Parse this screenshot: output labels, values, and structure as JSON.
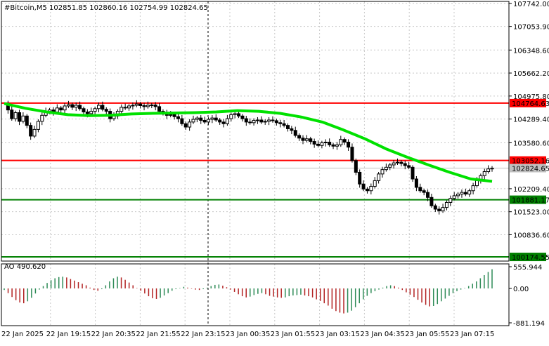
{
  "chart_data": [
    {
      "type": "candlestick",
      "title": "#Bitcoin,M5  102851.85 102860.16 102754.99 102824.65",
      "symbol": "#Bitcoin",
      "timeframe": "M5",
      "ohlc_header": {
        "open": 102851.85,
        "high": 102860.16,
        "low": 102754.99,
        "close": 102824.65
      },
      "y_tick_labels": [
        "107742.00",
        "107053.90",
        "106348.60",
        "105662.20",
        "104975.80",
        "104289.40",
        "103580.60",
        "102209.40",
        "101523.00",
        "100836.60"
      ],
      "y_ticks": [
        107742.0,
        107053.9,
        106348.6,
        105662.2,
        104975.8,
        104289.4,
        103580.6,
        102209.4,
        101523.0,
        100836.6
      ],
      "ylim": [
        100050,
        107800
      ],
      "x_tick_labels": [
        "22 Jan 2025",
        "22 Jan 19:15",
        "22 Jan 20:35",
        "22 Jan 21:55",
        "22 Jan 23:15",
        "23 Jan 00:35",
        "23 Jan 01:55",
        "23 Jan 03:15",
        "23 Jan 04:35",
        "23 Jan 05:55",
        "23 Jan 07:15"
      ],
      "grid": true,
      "price_series": [
        104750,
        104560,
        104300,
        104480,
        104220,
        104380,
        104100,
        103780,
        103980,
        104220,
        104400,
        104520,
        104560,
        104500,
        104620,
        104560,
        104680,
        104720,
        104640,
        104700,
        104600,
        104500,
        104450,
        104520,
        104600,
        104700,
        104580,
        104520,
        104300,
        104380,
        104520,
        104640,
        104620,
        104680,
        104700,
        104740,
        104690,
        104660,
        104700,
        104710,
        104660,
        104520,
        104480,
        104400,
        104420,
        104360,
        104300,
        104150,
        104050,
        104200,
        104280,
        104320,
        104250,
        104200,
        104280,
        104320,
        104260,
        104200,
        104150,
        104300,
        104420,
        104450,
        104380,
        104300,
        104200,
        104180,
        104250,
        104260,
        104200,
        104220,
        104260,
        104240,
        104180,
        104150,
        104100,
        104000,
        103950,
        103800,
        103720,
        103650,
        103700,
        103620,
        103540,
        103500,
        103580,
        103600,
        103520,
        103480,
        103520,
        103680,
        103600,
        103450,
        103050,
        102700,
        102350,
        102200,
        102150,
        102280,
        102450,
        102650,
        102780,
        102850,
        102920,
        102980,
        103000,
        102960,
        102900,
        102850,
        102500,
        102250,
        102150,
        102100,
        101950,
        101700,
        101600,
        101550,
        101650,
        101800,
        101920,
        102000,
        102050,
        102100,
        102050,
        102150,
        102300,
        102450,
        102600,
        102720,
        102800,
        102824.65
      ],
      "series": [
        {
          "name": "Moving average",
          "color": "#00e100",
          "values": [
            104750,
            104610,
            104500,
            104420,
            104390,
            104400,
            104440,
            104460,
            104470,
            104480,
            104500,
            104540,
            104520,
            104460,
            104350,
            104200,
            103960,
            103700,
            103400,
            103150,
            102920,
            102700,
            102500,
            102430
          ]
        }
      ],
      "horizontal_levels": [
        {
          "value": 104764.63,
          "label": "104764.63",
          "color": "#ff0000"
        },
        {
          "value": 103052.16,
          "label": "103052.16",
          "color": "#ff0000"
        },
        {
          "value": 102824.65,
          "label": "102824.65",
          "color": "#c0c0c0"
        },
        {
          "value": 101881.17,
          "label": "101881.17",
          "color": "#008000"
        },
        {
          "value": 100174.55,
          "label": "100174.55",
          "color": "#008000"
        }
      ]
    },
    {
      "type": "bar",
      "title": "AO 490.620",
      "indicator": "AO",
      "current_value": 490.62,
      "y_tick_labels": [
        "555.944",
        "0.00",
        "-881.194"
      ],
      "y_ticks": [
        555.944,
        0.0,
        -881.194
      ],
      "ylim": [
        -881.194,
        555.944
      ],
      "values": [
        -40,
        -120,
        -220,
        -300,
        -360,
        -380,
        -330,
        -240,
        -130,
        -30,
        60,
        140,
        210,
        260,
        290,
        300,
        280,
        240,
        200,
        160,
        120,
        80,
        20,
        -40,
        -60,
        -20,
        80,
        180,
        260,
        300,
        280,
        220,
        150,
        80,
        10,
        -60,
        -130,
        -200,
        -250,
        -270,
        -240,
        -180,
        -120,
        -60,
        -20,
        10,
        40,
        20,
        -10,
        -30,
        -40,
        -20,
        20,
        60,
        90,
        100,
        70,
        30,
        -30,
        -90,
        -150,
        -200,
        -230,
        -210,
        -170,
        -140,
        -120,
        -150,
        -190,
        -210,
        -230,
        -240,
        -230,
        -200,
        -180,
        -170,
        -160,
        -180,
        -200,
        -230,
        -280,
        -320,
        -380,
        -440,
        -520,
        -580,
        -620,
        -640,
        -620,
        -570,
        -480,
        -380,
        -280,
        -190,
        -120,
        -70,
        -30,
        20,
        60,
        80,
        60,
        20,
        -40,
        -100,
        -160,
        -220,
        -290,
        -360,
        -420,
        -460,
        -450,
        -400,
        -330,
        -260,
        -190,
        -120,
        -70,
        -30,
        10,
        60,
        120,
        180,
        260,
        340,
        420,
        490.62
      ]
    }
  ],
  "colors": {
    "background": "#ffffff",
    "grid": "#c8c8c8",
    "bull": "#000000",
    "bear": "#000000",
    "ma": "#00e100",
    "ao_up": "#2e8b57",
    "ao_down": "#b22222"
  }
}
